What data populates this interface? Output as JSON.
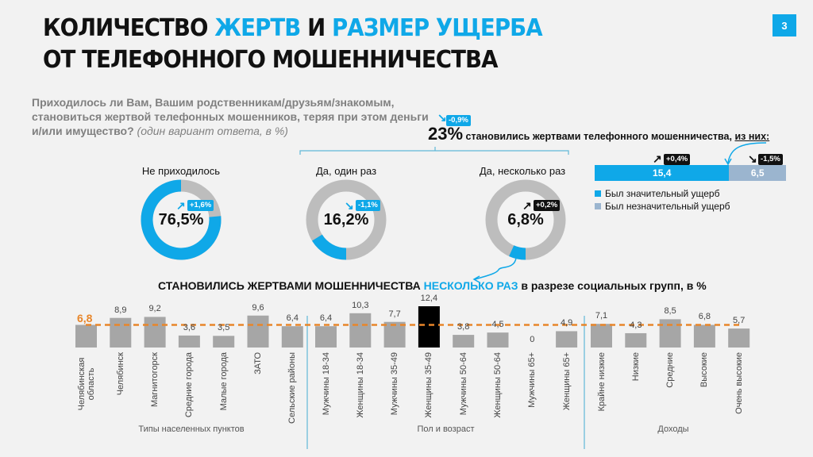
{
  "header": {
    "title_line1_part1": "КОЛИЧЕСТВО ",
    "title_line1_part2": "ЖЕРТВ",
    "title_line1_part3": " И ",
    "title_line1_part4": "РАЗМЕР УЩЕРБА",
    "title_line2": "ОТ ТЕЛЕФОННОГО МОШЕННИЧЕСТВА",
    "page_number": "3"
  },
  "question": {
    "text": "Приходилось ли Вам, Вашим родственникам/друзьям/знакомым, становиться жертвой телефонных мошенников, теряя при этом деньги и/или имущество?",
    "note": " (один вариант ответа, в %)"
  },
  "headline": {
    "value": "23%",
    "text": " становились жертвами телефонного мошенничества, ",
    "underlined": "из них:",
    "change": "-0,9%"
  },
  "colors": {
    "accent": "#0fa8e8",
    "gray": "#bdbdbd",
    "bar_gray": "#a6a6a6",
    "highlight": "#000000",
    "average": "#e8862a",
    "light_blue": "#9bb5cf"
  },
  "donuts": [
    {
      "label": "Не приходилось",
      "value": 76.5,
      "value_text": "76,5%",
      "change": "+1,6%",
      "change_dir": "up",
      "badge": "blue"
    },
    {
      "label": "Да, один раз",
      "value": 16.2,
      "value_text": "16,2%",
      "change": "-1,1%",
      "change_dir": "down",
      "badge": "blue"
    },
    {
      "label": "Да, несколько раз",
      "value": 6.8,
      "value_text": "6,8%",
      "change": "+0,2%",
      "change_dir": "up",
      "badge": "black"
    }
  ],
  "damage": {
    "significant": {
      "value": 15.4,
      "text": "15,4",
      "change": "+0,4%",
      "label": "Был значительный ущерб"
    },
    "insignificant": {
      "value": 6.5,
      "text": "6,5",
      "change": "-1,5%",
      "label": "Был незначительный ущерб"
    }
  },
  "chart_data": {
    "type": "bar",
    "title_part1": "СТАНОВИЛИСЬ ЖЕРТВАМИ МОШЕННИЧЕСТВА ",
    "title_part2": "НЕСКОЛЬКО РАЗ",
    "title_part3": " в разрезе социальных групп, в %",
    "average": 6.8,
    "average_text": "6,8",
    "ylim": [
      0,
      13
    ],
    "groups": [
      {
        "name": "Типы населенных пунктов",
        "categories": [
          "Челябинская область",
          "Челябинск",
          "Магнитогорск",
          "Средние города",
          "Малые города",
          "ЗАТО",
          "Сельские районы"
        ],
        "values": [
          6.8,
          8.9,
          9.2,
          3.6,
          3.5,
          9.6,
          6.4
        ],
        "labels": [
          "",
          "8,9",
          "9,2",
          "3,6",
          "3,5",
          "9,6",
          "6,4"
        ]
      },
      {
        "name": "Пол и возраст",
        "categories": [
          "Мужчины 18-34",
          "Женщины 18-34",
          "Мужчины 35-49",
          "Женщины 35-49",
          "Мужчины 50-64",
          "Женщины 50-64",
          "Мужчины 65+",
          "Женщины 65+"
        ],
        "values": [
          6.4,
          10.3,
          7.7,
          12.4,
          3.8,
          4.5,
          0,
          4.9
        ],
        "labels": [
          "6,4",
          "10,3",
          "7,7",
          "12,4",
          "3,8",
          "4,5",
          "0",
          "4,9"
        ],
        "highlight_index": 3
      },
      {
        "name": "Доходы",
        "categories": [
          "Крайне низкие",
          "Низкие",
          "Средние",
          "Высокие",
          "Очень высокие"
        ],
        "values": [
          7.1,
          4.3,
          8.5,
          6.8,
          5.7
        ],
        "labels": [
          "7,1",
          "4,3",
          "8,5",
          "6,8",
          "5,7"
        ]
      }
    ]
  }
}
